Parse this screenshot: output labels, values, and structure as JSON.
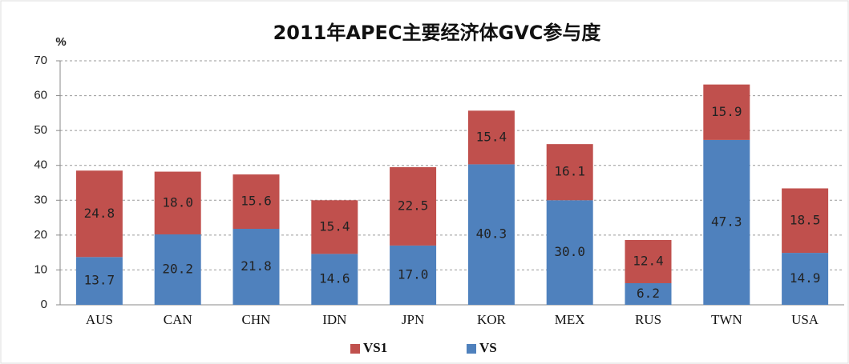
{
  "chart_data": {
    "type": "stacked_bar",
    "title": "2011年APEC主要经济体GVC参与度",
    "y_label": "%",
    "categories": [
      "AUS",
      "CAN",
      "CHN",
      "IDN",
      "JPN",
      "KOR",
      "MEX",
      "RUS",
      "TWN",
      "USA"
    ],
    "series": [
      {
        "name": "VS",
        "color": "#4f81bd",
        "values": [
          13.7,
          20.2,
          21.8,
          14.6,
          17.0,
          40.3,
          30.0,
          6.2,
          47.3,
          14.9
        ],
        "value_labels": [
          "13.7",
          "20.2",
          "21.8",
          "14.6",
          "17.0",
          "40.3",
          "30.0",
          "6.2",
          "47.3",
          "14.9"
        ]
      },
      {
        "name": "VS1",
        "color": "#c0504d",
        "values": [
          24.8,
          18.0,
          15.6,
          15.4,
          22.5,
          15.4,
          16.1,
          12.4,
          15.9,
          18.5
        ],
        "value_labels": [
          "24.8",
          "18.0",
          "15.6",
          "15.4",
          "22.5",
          "15.4",
          "16.1",
          "12.4",
          "15.9",
          "18.5"
        ]
      }
    ],
    "ylim": [
      0,
      70
    ],
    "yticks": [
      0,
      10,
      20,
      30,
      40,
      50,
      60,
      70
    ],
    "grid": true,
    "legend": "bottom"
  }
}
